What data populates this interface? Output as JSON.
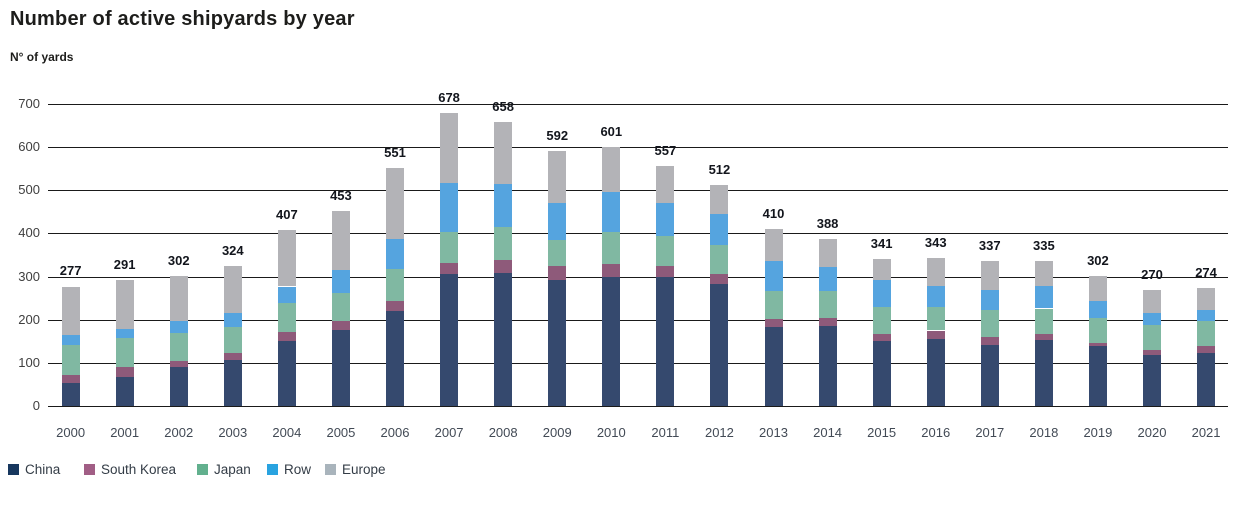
{
  "header": {
    "title": "Number of active shipyards by year",
    "subtitle": "N° of yards"
  },
  "chart_data": {
    "type": "bar",
    "stacked": true,
    "title": "Number of active shipyards by year",
    "ylabel": "N° of yards",
    "ylim": [
      0,
      700
    ],
    "yticks": [
      0,
      100,
      200,
      300,
      400,
      500,
      600,
      700
    ],
    "grid": true,
    "legend_position": "bottom-left",
    "categories": [
      "2000",
      "2001",
      "2002",
      "2003",
      "2004",
      "2005",
      "2006",
      "2007",
      "2008",
      "2009",
      "2010",
      "2011",
      "2012",
      "2013",
      "2014",
      "2015",
      "2016",
      "2017",
      "2018",
      "2019",
      "2020",
      "2021"
    ],
    "series": [
      {
        "name": "China",
        "color": "#35496e",
        "legend_color": "#17375e",
        "values": [
          54,
          68,
          90,
          106,
          151,
          175,
          220,
          305,
          309,
          292,
          298,
          298,
          282,
          184,
          185,
          151,
          155,
          141,
          153,
          138,
          118,
          124
        ]
      },
      {
        "name": "South Korea",
        "color": "#8e5a7a",
        "legend_color": "#a15e85",
        "values": [
          17,
          23,
          15,
          16,
          21,
          23,
          24,
          27,
          29,
          33,
          31,
          27,
          23,
          18,
          20,
          17,
          20,
          20,
          13,
          9,
          12,
          14
        ]
      },
      {
        "name": "Japan",
        "color": "#80b8a2",
        "legend_color": "#62b08e",
        "values": [
          70,
          66,
          64,
          61,
          66,
          65,
          74,
          72,
          78,
          60,
          75,
          69,
          68,
          65,
          62,
          62,
          55,
          62,
          60,
          56,
          58,
          58
        ]
      },
      {
        "name": "Row",
        "color": "#55a4df",
        "legend_color": "#29a3e0",
        "values": [
          24,
          21,
          29,
          33,
          39,
          52,
          69,
          112,
          98,
          86,
          91,
          77,
          71,
          70,
          56,
          61,
          48,
          47,
          51,
          41,
          28,
          27
        ]
      },
      {
        "name": "Europe",
        "color": "#b3b3b7",
        "legend_color": "#a9b4bc",
        "values": [
          112,
          113,
          104,
          108,
          130,
          138,
          164,
          162,
          144,
          121,
          106,
          86,
          68,
          73,
          65,
          50,
          65,
          67,
          58,
          58,
          54,
          51
        ]
      }
    ],
    "totals": [
      277,
      291,
      302,
      324,
      407,
      453,
      551,
      678,
      658,
      592,
      601,
      557,
      512,
      410,
      388,
      341,
      343,
      337,
      335,
      302,
      270,
      274
    ]
  }
}
